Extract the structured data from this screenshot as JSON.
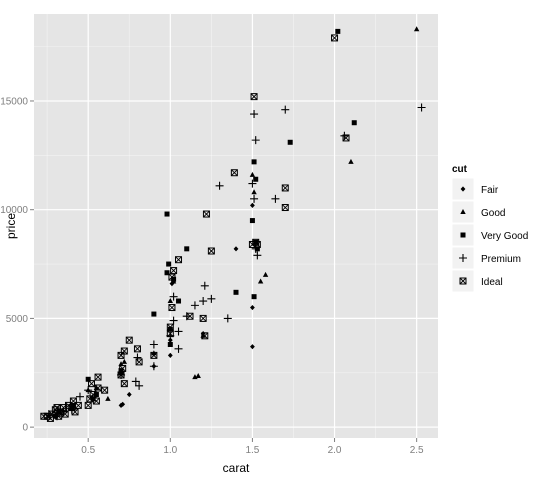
{
  "chart_data": {
    "type": "scatter",
    "title": "",
    "xlabel": "carat",
    "ylabel": "price",
    "xlim": [
      0.17,
      2.63
    ],
    "ylim": [
      -500,
      19000
    ],
    "x_ticks": [
      0.5,
      1.0,
      1.5,
      2.0,
      2.5
    ],
    "x_tick_labels": [
      "0.5",
      "1.0",
      "1.5",
      "2.0",
      "2.5"
    ],
    "y_ticks": [
      0,
      5000,
      10000,
      15000
    ],
    "y_tick_labels": [
      "0",
      "5000",
      "10000",
      "15000"
    ],
    "grid": true,
    "background_color": "#e5e5e5",
    "grid_color": "#ffffff",
    "legend": {
      "title": "cut",
      "placement": "right",
      "entries": [
        {
          "label": "Fair",
          "shape": "diamond"
        },
        {
          "label": "Good",
          "shape": "triangle"
        },
        {
          "label": "Very Good",
          "shape": "square"
        },
        {
          "label": "Premium",
          "shape": "plus"
        },
        {
          "label": "Ideal",
          "shape": "square-x"
        }
      ]
    },
    "series": [
      {
        "name": "Fair",
        "shape": "diamond",
        "points": [
          [
            0.7,
            1000
          ],
          [
            0.75,
            1500
          ],
          [
            0.9,
            2800
          ],
          [
            1.0,
            3300
          ],
          [
            1.0,
            4000
          ],
          [
            1.2,
            4300
          ],
          [
            1.5,
            3700
          ],
          [
            1.5,
            5500
          ],
          [
            1.5,
            10200
          ],
          [
            1.4,
            8200
          ],
          [
            1.01,
            6600
          ],
          [
            0.71,
            1050
          ]
        ]
      },
      {
        "name": "Good",
        "shape": "triangle",
        "points": [
          [
            0.5,
            1700
          ],
          [
            0.55,
            1800
          ],
          [
            0.7,
            2900
          ],
          [
            0.9,
            3400
          ],
          [
            1.0,
            5800
          ],
          [
            1.02,
            6700
          ],
          [
            1.15,
            2300
          ],
          [
            1.17,
            2350
          ],
          [
            1.2,
            4200
          ],
          [
            1.5,
            11600
          ],
          [
            1.51,
            10800
          ],
          [
            1.55,
            6700
          ],
          [
            1.58,
            7000
          ],
          [
            2.1,
            12200
          ],
          [
            2.5,
            18300
          ],
          [
            0.62,
            1300
          ],
          [
            0.72,
            3000
          ]
        ]
      },
      {
        "name": "Very Good",
        "shape": "square",
        "points": [
          [
            2.02,
            18200
          ],
          [
            2.12,
            14000
          ],
          [
            1.73,
            13100
          ],
          [
            1.51,
            12200
          ],
          [
            1.52,
            11400
          ],
          [
            0.98,
            9800
          ],
          [
            1.5,
            9500
          ],
          [
            1.52,
            8500
          ],
          [
            1.53,
            8200
          ],
          [
            1.1,
            8200
          ],
          [
            0.99,
            7500
          ],
          [
            0.98,
            7100
          ],
          [
            1.4,
            6200
          ],
          [
            1.51,
            6000
          ],
          [
            1.05,
            5800
          ],
          [
            0.9,
            5200
          ],
          [
            1.0,
            4500
          ],
          [
            1.0,
            3800
          ],
          [
            0.7,
            2600
          ],
          [
            0.7,
            2500
          ],
          [
            0.5,
            2200
          ],
          [
            0.55,
            1500
          ],
          [
            0.4,
            900
          ],
          [
            0.32,
            700
          ],
          [
            0.3,
            500
          ],
          [
            0.53,
            1300
          ],
          [
            0.41,
            1000
          ],
          [
            1.02,
            6800
          ]
        ]
      },
      {
        "name": "Premium",
        "shape": "plus",
        "points": [
          [
            2.53,
            14700
          ],
          [
            2.06,
            13400
          ],
          [
            1.7,
            14600
          ],
          [
            1.51,
            14400
          ],
          [
            1.52,
            13200
          ],
          [
            1.3,
            11100
          ],
          [
            1.5,
            11200
          ],
          [
            1.51,
            10500
          ],
          [
            1.64,
            10500
          ],
          [
            1.52,
            8200
          ],
          [
            1.53,
            7900
          ],
          [
            1.21,
            6500
          ],
          [
            1.25,
            5900
          ],
          [
            1.35,
            5000
          ],
          [
            1.2,
            5800
          ],
          [
            1.1,
            5100
          ],
          [
            1.02,
            4900
          ],
          [
            1.05,
            4400
          ],
          [
            1.0,
            4200
          ],
          [
            0.9,
            3800
          ],
          [
            1.05,
            3600
          ],
          [
            0.79,
            2100
          ],
          [
            0.81,
            1900
          ],
          [
            0.8,
            3200
          ],
          [
            0.7,
            2400
          ],
          [
            0.5,
            1700
          ],
          [
            0.45,
            1400
          ],
          [
            0.35,
            700
          ],
          [
            0.31,
            500
          ],
          [
            0.26,
            600
          ],
          [
            0.4,
            800
          ],
          [
            1.02,
            6000
          ],
          [
            1.15,
            5600
          ],
          [
            0.9,
            2800
          ]
        ]
      },
      {
        "name": "Ideal",
        "shape": "square-x",
        "points": [
          [
            2.0,
            17900
          ],
          [
            2.07,
            13300
          ],
          [
            1.51,
            15200
          ],
          [
            1.7,
            11000
          ],
          [
            1.7,
            10100
          ],
          [
            1.39,
            11700
          ],
          [
            1.22,
            9800
          ],
          [
            1.25,
            8100
          ],
          [
            1.5,
            8400
          ],
          [
            1.53,
            8400
          ],
          [
            1.05,
            7700
          ],
          [
            1.02,
            7200
          ],
          [
            1.01,
            6900
          ],
          [
            1.2,
            5000
          ],
          [
            1.21,
            4200
          ],
          [
            1.12,
            5100
          ],
          [
            1.0,
            4600
          ],
          [
            1.0,
            4300
          ],
          [
            0.9,
            3300
          ],
          [
            0.75,
            4000
          ],
          [
            0.71,
            2700
          ],
          [
            0.7,
            2400
          ],
          [
            0.72,
            2000
          ],
          [
            0.81,
            3000
          ],
          [
            0.8,
            3600
          ],
          [
            0.72,
            3500
          ],
          [
            0.7,
            3300
          ],
          [
            0.56,
            2300
          ],
          [
            0.56,
            1800
          ],
          [
            0.52,
            2000
          ],
          [
            0.53,
            1500
          ],
          [
            0.55,
            1200
          ],
          [
            0.5,
            1000
          ],
          [
            0.44,
            1000
          ],
          [
            0.42,
            700
          ],
          [
            0.4,
            900
          ],
          [
            0.38,
            1000
          ],
          [
            0.35,
            900
          ],
          [
            0.33,
            700
          ],
          [
            0.32,
            500
          ],
          [
            0.3,
            800
          ],
          [
            0.28,
            600
          ],
          [
            0.27,
            400
          ],
          [
            0.25,
            500
          ],
          [
            0.23,
            500
          ],
          [
            0.31,
            900
          ],
          [
            0.41,
            1200
          ],
          [
            1.52,
            8500
          ],
          [
            1.01,
            5500
          ],
          [
            0.51,
            1300
          ],
          [
            0.6,
            1700
          ],
          [
            0.36,
            600
          ]
        ]
      }
    ]
  }
}
